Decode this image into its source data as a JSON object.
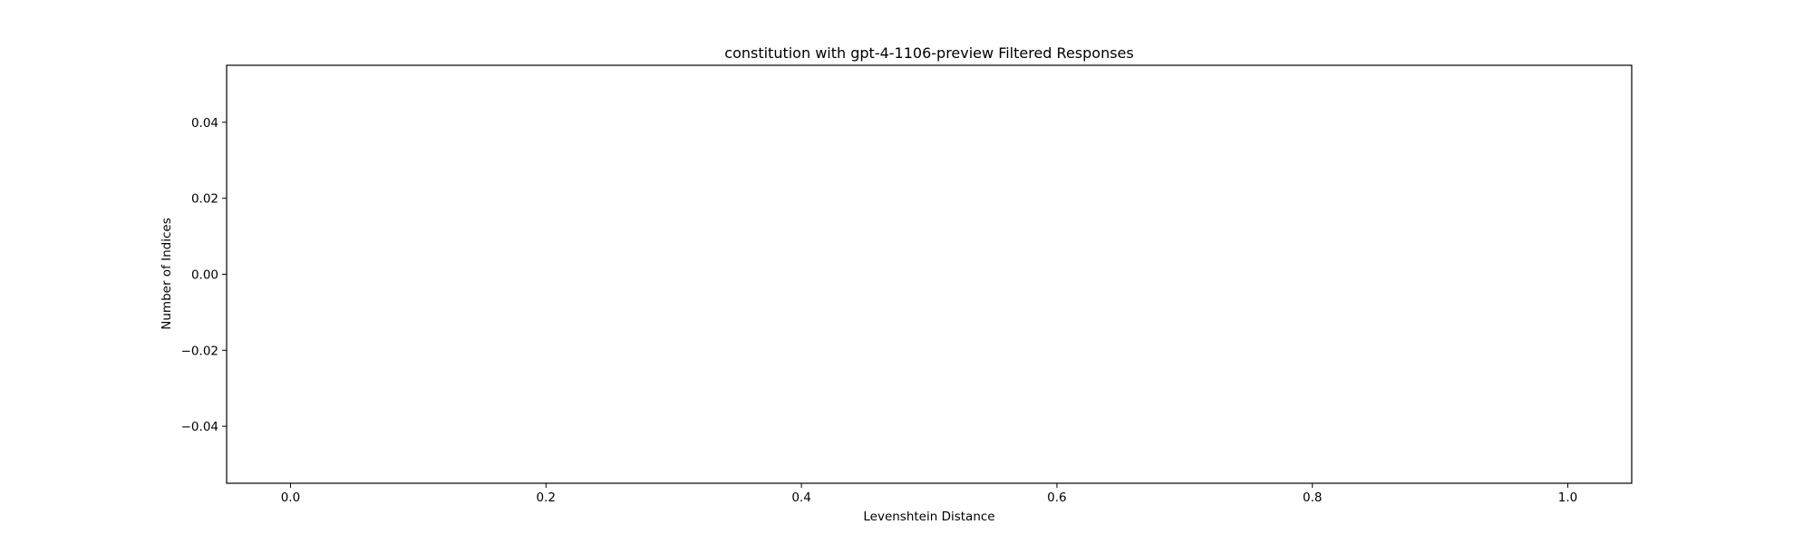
{
  "chart_data": {
    "type": "bar",
    "title": "constitution with gpt-4-1106-preview Filtered Responses",
    "xlabel": "Levenshtein Distance",
    "ylabel": "Number of Indices",
    "xlim": [
      -0.05,
      1.05
    ],
    "ylim": [
      -0.055,
      0.055
    ],
    "x_ticks": [
      0.0,
      0.2,
      0.4,
      0.6,
      0.8,
      1.0
    ],
    "x_tick_labels": [
      "0.0",
      "0.2",
      "0.4",
      "0.6",
      "0.8",
      "1.0"
    ],
    "y_ticks": [
      0.04,
      0.02,
      0.0,
      -0.02,
      -0.04
    ],
    "y_tick_labels": [
      "0.04",
      "0.02",
      "0.00",
      "−0.02",
      "−0.04"
    ],
    "series": [
      {
        "values": []
      }
    ],
    "grid": false,
    "legend": "none"
  }
}
